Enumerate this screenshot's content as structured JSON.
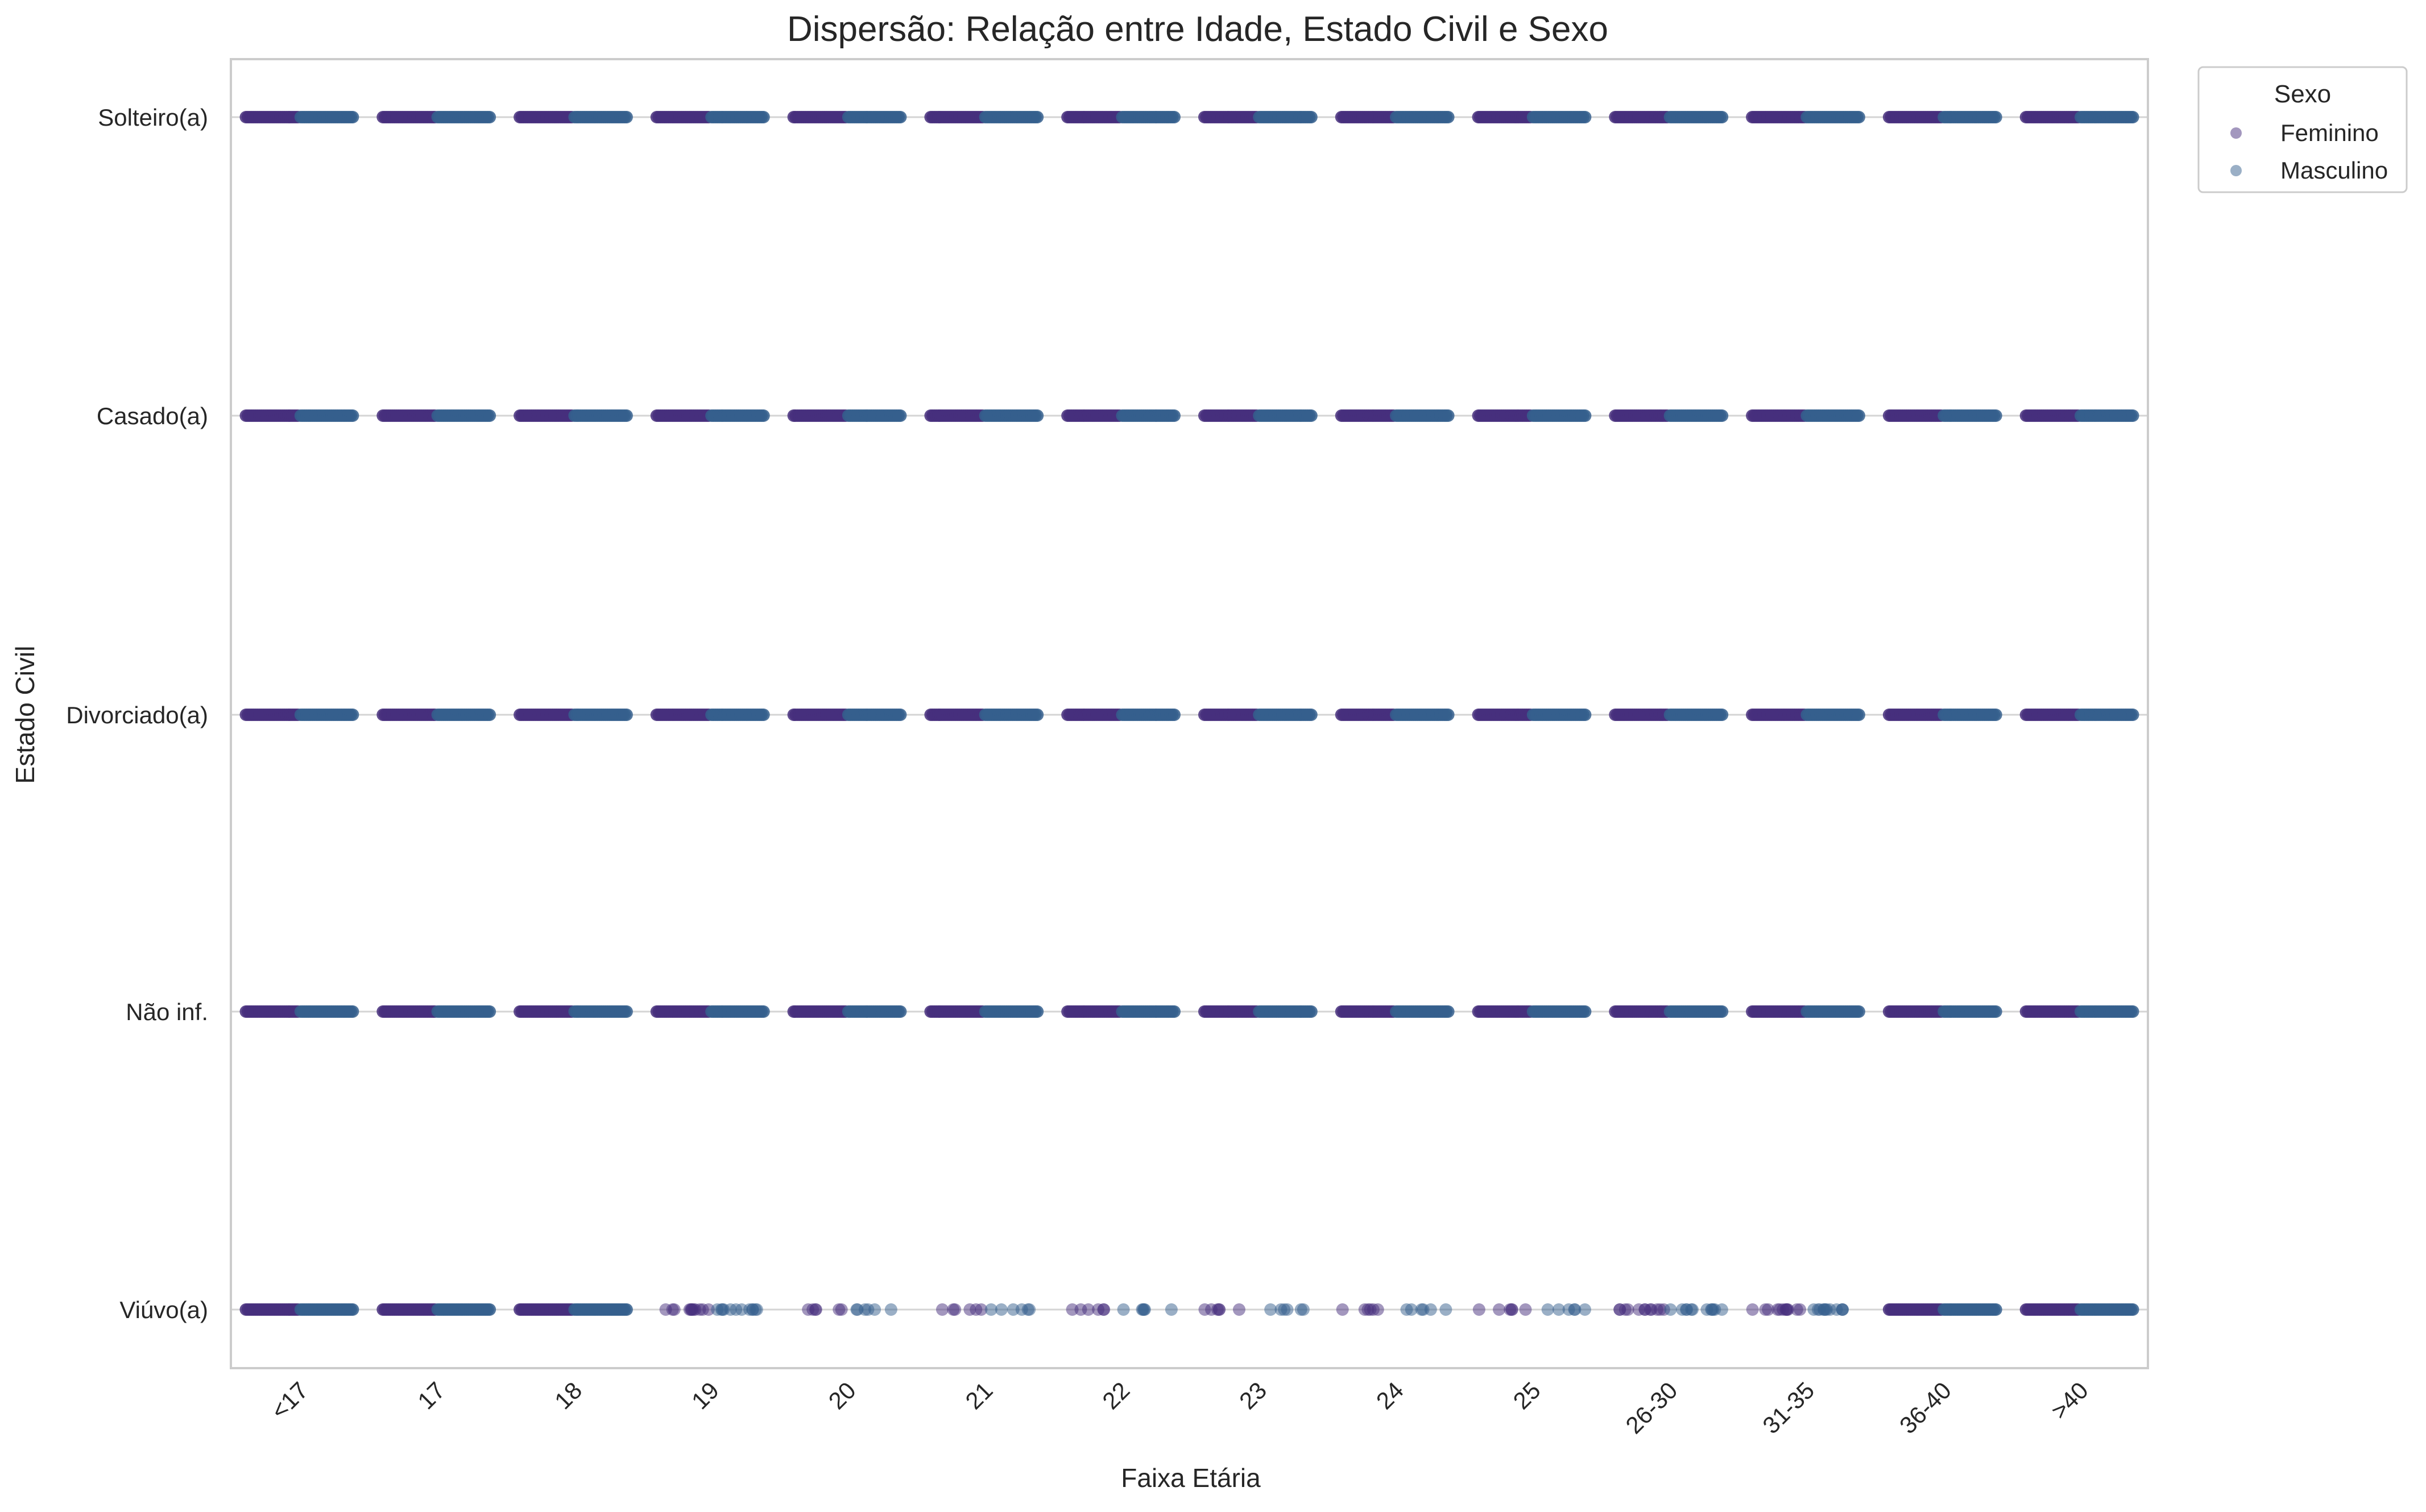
{
  "chart_data": {
    "type": "scatter",
    "title": "Dispersão: Relação entre Idade, Estado Civil e Sexo",
    "xlabel": "Faixa Etária",
    "ylabel": "Estado Civil",
    "categories": [
      "<17",
      "17",
      "18",
      "19",
      "20",
      "21",
      "22",
      "23",
      "24",
      "25",
      "26-30",
      "31-35",
      "36-40",
      ">40"
    ],
    "y_categories": [
      "Solteiro(a)",
      "Casado(a)",
      "Divorciado(a)",
      "Não inf.",
      "Viúvo(a)"
    ],
    "grid": "horizontal",
    "legend": {
      "title": "Sexo",
      "placement": "outside top-right",
      "entries": [
        "Feminino",
        "Masculino"
      ]
    },
    "series": [
      {
        "name": "Feminino",
        "color": "#472f7d",
        "dodge": -0.2
      },
      {
        "name": "Masculino",
        "color": "#355f8d",
        "dodge": 0.2
      }
    ],
    "density_note_by_group": {
      "Viúvo(a)": [
        "dense",
        "dense",
        "dense",
        "medium",
        "sparse",
        "sparse",
        "sparse",
        "sparse",
        "sparse",
        "sparse",
        "medium",
        "medium",
        "dense",
        "dense"
      ]
    },
    "marker_alpha": 0.5
  }
}
